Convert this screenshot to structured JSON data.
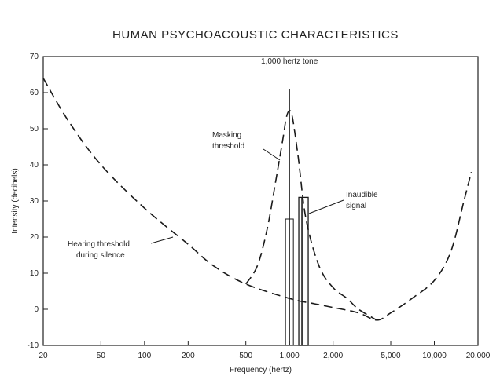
{
  "chart_data": {
    "type": "line",
    "title": "HUMAN PSYCHOACOUSTIC CHARACTERISTICS",
    "xlabel": "Frequency (hertz)",
    "ylabel": "Intensity (decibels)",
    "xscale": "log",
    "xlim": [
      20,
      20000
    ],
    "ylim": [
      -10,
      70
    ],
    "x_ticks": [
      20,
      50,
      100,
      200,
      500,
      1000,
      2000,
      5000,
      10000,
      20000
    ],
    "x_tick_labels": [
      "20",
      "50",
      "100",
      "200",
      "500",
      "1,000",
      "2,000",
      "5,000",
      "10,000",
      "20,000"
    ],
    "y_ticks": [
      -10,
      0,
      10,
      20,
      30,
      40,
      50,
      60,
      70
    ],
    "y_tick_labels": [
      "-10",
      "0",
      "10",
      "20",
      "30",
      "40",
      "50",
      "60",
      "70"
    ],
    "grid": false,
    "series": [
      {
        "style": "dashed",
        "points": [
          [
            20,
            64
          ],
          [
            30,
            52
          ],
          [
            50,
            40
          ],
          [
            100,
            28
          ],
          [
            200,
            18
          ],
          [
            300,
            12
          ],
          [
            500,
            7
          ],
          [
            1000,
            3
          ],
          [
            1500,
            1.5
          ],
          [
            2000,
            0.5
          ],
          [
            3000,
            -1
          ],
          [
            4000,
            -3
          ],
          [
            5000,
            -1
          ],
          [
            7000,
            3
          ],
          [
            10000,
            8
          ],
          [
            13000,
            16
          ],
          [
            16000,
            30
          ],
          [
            18000,
            38
          ]
        ]
      },
      {
        "style": "dashed",
        "points": [
          [
            500,
            7
          ],
          [
            600,
            12
          ],
          [
            700,
            22
          ],
          [
            800,
            35
          ],
          [
            900,
            47
          ],
          [
            950,
            53
          ],
          [
            1000,
            55
          ],
          [
            1050,
            53
          ],
          [
            1150,
            42
          ],
          [
            1300,
            25
          ],
          [
            1600,
            12
          ],
          [
            2000,
            6
          ],
          [
            2500,
            3
          ],
          [
            3000,
            0
          ],
          [
            4000,
            -3
          ]
        ]
      }
    ],
    "markers": [
      {
        "label": "1,000 hertz tone",
        "x": 1000,
        "y": 61
      },
      {
        "label": "Inaudible signal",
        "x": 1250,
        "y": 31
      }
    ],
    "annotations": [
      {
        "text": "1,000 hertz tone"
      },
      {
        "text": "Masking",
        "text2": "threshold"
      },
      {
        "text": "Inaudible",
        "text2": "signal"
      },
      {
        "text": "Hearing threshold",
        "text2": "during silence"
      }
    ]
  }
}
